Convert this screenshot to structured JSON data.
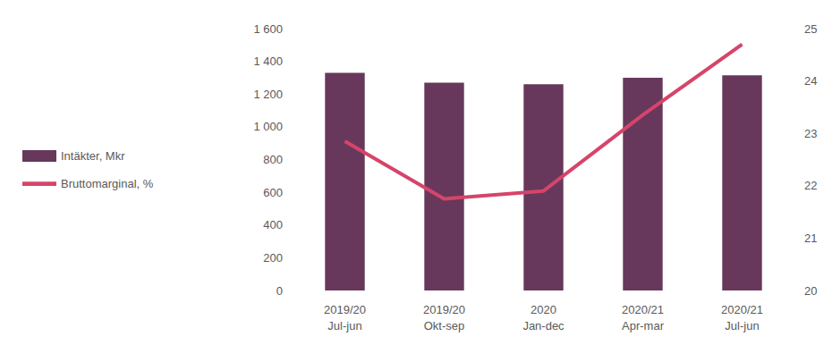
{
  "chart_data": {
    "type": "bar",
    "categories": [
      "2019/20\nJul-jun",
      "2019/20\nOkt-sep",
      "2020\nJan-dec",
      "2020/21\nApr-mar",
      "2020/21\nJul-jun"
    ],
    "series": [
      {
        "name": "Intäkter, Mkr",
        "type": "bar",
        "color": "#67385b",
        "values": [
          1330,
          1270,
          1260,
          1300,
          1315
        ]
      },
      {
        "name": "Bruttomarginal, %",
        "type": "line",
        "axis": "y2",
        "color": "#d6446a",
        "values": [
          22.85,
          21.75,
          21.9,
          23.35,
          24.7
        ]
      }
    ],
    "ylim": [
      0,
      1600
    ],
    "yticks": [
      0,
      200,
      400,
      600,
      800,
      {
        "value": 1000,
        "label": "1 000"
      },
      {
        "value": 1200,
        "label": "1 200"
      },
      {
        "value": 1400,
        "label": "1 400"
      },
      {
        "value": 1600,
        "label": "1 600"
      }
    ],
    "y2lim": [
      20,
      25
    ],
    "y2ticks": [
      20,
      21,
      22,
      23,
      24,
      25
    ],
    "grid": false,
    "legend": "left"
  }
}
